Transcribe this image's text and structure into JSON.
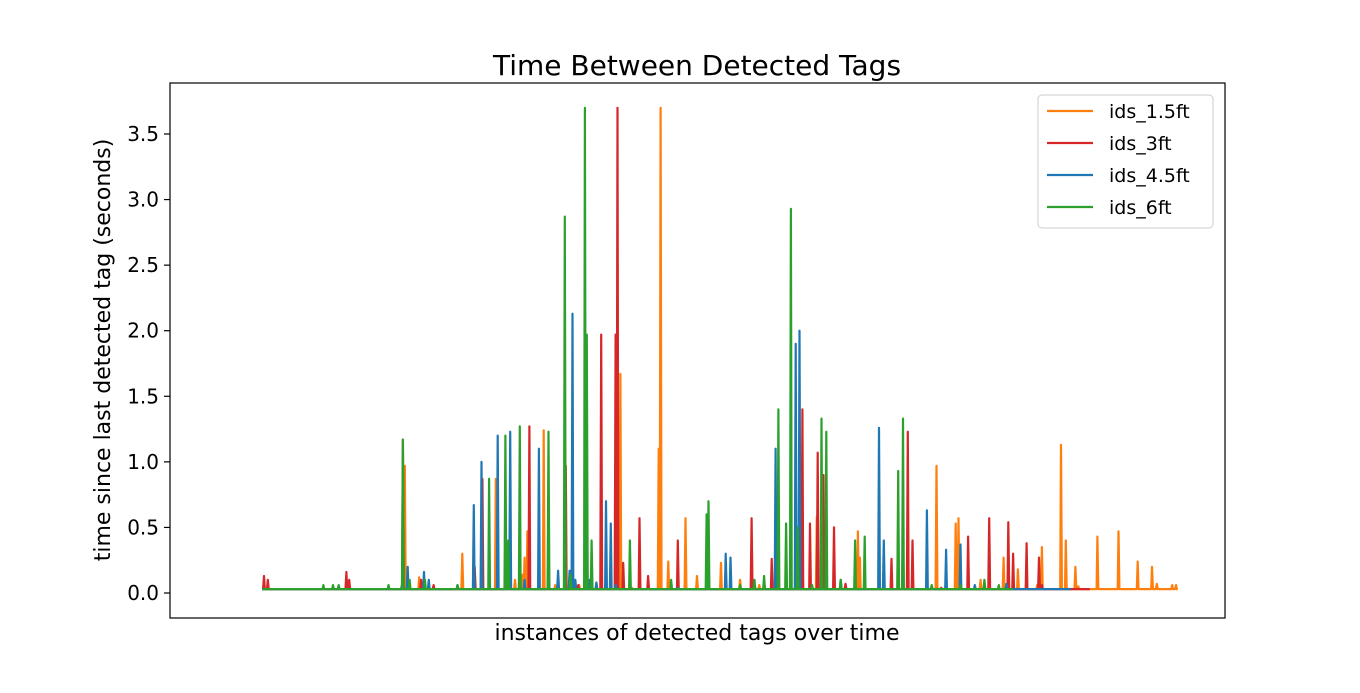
{
  "chart_data": {
    "type": "line",
    "title": "Time Between Detected Tags",
    "xlabel": "instances of detected tags over time",
    "ylabel": "time since last detected tag (seconds)",
    "ylim": [
      -0.18,
      3.9
    ],
    "xlim": [
      0,
      1000
    ],
    "y_ticks": [
      "0.0",
      "0.5",
      "1.0",
      "1.5",
      "2.0",
      "2.5",
      "3.0",
      "3.5"
    ],
    "x_ticks_visible": false,
    "grid": false,
    "legend_position": "upper-right",
    "baseline": 0.03,
    "series": [
      {
        "name": "ids_1.5ft",
        "color": "#ff7f0e",
        "x_range": [
          46,
          1000
        ],
        "spikes": [
          [
            195,
            0.97
          ],
          [
            199,
            0.1
          ],
          [
            210,
            0.12
          ],
          [
            255,
            0.3
          ],
          [
            290,
            0.87
          ],
          [
            310,
            0.1
          ],
          [
            318,
            0.14
          ],
          [
            320,
            0.27
          ],
          [
            323,
            0.47
          ],
          [
            340,
            1.24
          ],
          [
            352,
            0.06
          ],
          [
            370,
            0.06
          ],
          [
            377,
            0.06
          ],
          [
            385,
            1.03
          ],
          [
            420,
            1.67
          ],
          [
            432,
            0.04
          ],
          [
            440,
            0.08
          ],
          [
            460,
            1.1
          ],
          [
            462,
            3.7
          ],
          [
            470,
            0.24
          ],
          [
            488,
            0.57
          ],
          [
            500,
            0.13
          ],
          [
            525,
            0.23
          ],
          [
            545,
            0.1
          ],
          [
            565,
            0.06
          ],
          [
            610,
            0.3
          ],
          [
            625,
            0.58
          ],
          [
            668,
            0.47
          ],
          [
            670,
            0.27
          ],
          [
            690,
            0.06
          ],
          [
            710,
            0.55
          ],
          [
            725,
            0.06
          ],
          [
            750,
            0.97
          ],
          [
            770,
            0.53
          ],
          [
            773,
            0.57
          ],
          [
            796,
            0.1
          ],
          [
            820,
            0.27
          ],
          [
            835,
            0.18
          ],
          [
            855,
            0.06
          ],
          [
            860,
            0.35
          ],
          [
            880,
            1.13
          ],
          [
            885,
            0.4
          ],
          [
            895,
            0.2
          ],
          [
            898,
            0.05
          ],
          [
            918,
            0.43
          ],
          [
            940,
            0.47
          ],
          [
            960,
            0.24
          ],
          [
            975,
            0.2
          ],
          [
            980,
            0.07
          ],
          [
            996,
            0.06
          ],
          [
            1000,
            0.06
          ]
        ]
      },
      {
        "name": "ids_3ft",
        "color": "#d62728",
        "x_range": [
          46,
          910
        ],
        "spikes": [
          [
            48,
            0.13
          ],
          [
            52,
            0.1
          ],
          [
            134,
            0.16
          ],
          [
            137,
            0.1
          ],
          [
            193,
            1.17
          ],
          [
            198,
            0.1
          ],
          [
            212,
            0.1
          ],
          [
            225,
            0.06
          ],
          [
            268,
            0.2
          ],
          [
            276,
            0.87
          ],
          [
            300,
            0.27
          ],
          [
            303,
            0.37
          ],
          [
            315,
            0.26
          ],
          [
            325,
            1.27
          ],
          [
            363,
            0.97
          ],
          [
            376,
            0.06
          ],
          [
            400,
            1.97
          ],
          [
            415,
            1.97
          ],
          [
            417,
            3.7
          ],
          [
            423,
            0.23
          ],
          [
            440,
            0.57
          ],
          [
            449,
            0.13
          ],
          [
            480,
            0.4
          ],
          [
            557,
            0.57
          ],
          [
            578,
            0.26
          ],
          [
            610,
            1.4
          ],
          [
            618,
            0.53
          ],
          [
            626,
            1.07
          ],
          [
            632,
            0.9
          ],
          [
            643,
            0.5
          ],
          [
            655,
            0.07
          ],
          [
            665,
            0.08
          ],
          [
            703,
            0.26
          ],
          [
            720,
            1.23
          ],
          [
            725,
            0.4
          ],
          [
            755,
            0.04
          ],
          [
            783,
            0.43
          ],
          [
            805,
            0.57
          ],
          [
            825,
            0.54
          ],
          [
            830,
            0.3
          ],
          [
            844,
            0.38
          ],
          [
            857,
            0.27
          ],
          [
            860,
            0.06
          ]
        ]
      },
      {
        "name": "ids_4.5ft",
        "color": "#1f77b4",
        "x_range": [
          46,
          890
        ],
        "spikes": [
          [
            192,
            0.06
          ],
          [
            198,
            0.2
          ],
          [
            215,
            0.16
          ],
          [
            220,
            0.1
          ],
          [
            250,
            0.06
          ],
          [
            267,
            0.67
          ],
          [
            275,
            1.0
          ],
          [
            292,
            1.2
          ],
          [
            305,
            1.23
          ],
          [
            320,
            0.1
          ],
          [
            335,
            1.1
          ],
          [
            345,
            0.2
          ],
          [
            355,
            0.17
          ],
          [
            367,
            0.17
          ],
          [
            370,
            2.13
          ],
          [
            373,
            0.1
          ],
          [
            388,
            0.1
          ],
          [
            395,
            0.08
          ],
          [
            405,
            0.7
          ],
          [
            410,
            0.53
          ],
          [
            415,
            0.06
          ],
          [
            480,
            0.04
          ],
          [
            530,
            0.3
          ],
          [
            535,
            0.27
          ],
          [
            560,
            0.06
          ],
          [
            570,
            0.1
          ],
          [
            582,
            1.1
          ],
          [
            603,
            1.9
          ],
          [
            607,
            2.0
          ],
          [
            620,
            0.06
          ],
          [
            650,
            0.1
          ],
          [
            690,
            1.26
          ],
          [
            695,
            0.4
          ],
          [
            715,
            0.43
          ],
          [
            740,
            0.63
          ],
          [
            760,
            0.33
          ],
          [
            775,
            0.37
          ],
          [
            790,
            0.06
          ],
          [
            800,
            0.06
          ],
          [
            823,
            0.07
          ]
        ]
      },
      {
        "name": "ids_6ft",
        "color": "#2ca02c",
        "x_range": [
          46,
          830
        ],
        "spikes": [
          [
            110,
            0.06
          ],
          [
            120,
            0.06
          ],
          [
            126,
            0.06
          ],
          [
            178,
            0.06
          ],
          [
            193,
            1.17
          ],
          [
            200,
            0.1
          ],
          [
            216,
            0.1
          ],
          [
            250,
            0.06
          ],
          [
            283,
            0.87
          ],
          [
            303,
            0.4
          ],
          [
            300,
            1.2
          ],
          [
            315,
            1.27
          ],
          [
            345,
            1.23
          ],
          [
            362,
            2.87
          ],
          [
            368,
            0.14
          ],
          [
            374,
            0.03
          ],
          [
            383,
            3.7
          ],
          [
            385,
            1.97
          ],
          [
            390,
            0.4
          ],
          [
            430,
            0.4
          ],
          [
            473,
            0.1
          ],
          [
            510,
            0.6
          ],
          [
            512,
            0.7
          ],
          [
            545,
            0.06
          ],
          [
            560,
            0.1
          ],
          [
            570,
            0.13
          ],
          [
            585,
            1.4
          ],
          [
            593,
            0.53
          ],
          [
            598,
            2.93
          ],
          [
            605,
            0.5
          ],
          [
            620,
            0.06
          ],
          [
            630,
            1.33
          ],
          [
            635,
            1.23
          ],
          [
            650,
            0.1
          ],
          [
            665,
            0.4
          ],
          [
            675,
            0.43
          ],
          [
            710,
            0.93
          ],
          [
            715,
            1.33
          ],
          [
            745,
            0.06
          ],
          [
            775,
            0.06
          ],
          [
            800,
            0.1
          ],
          [
            815,
            0.06
          ]
        ]
      }
    ]
  }
}
